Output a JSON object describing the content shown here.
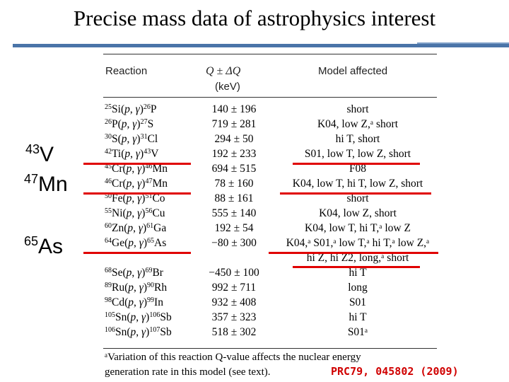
{
  "title": "Precise mass data of astrophysics interest",
  "side_labels": [
    {
      "mass": "43",
      "symbol": "V"
    },
    {
      "mass": "47",
      "symbol": "Mn"
    },
    {
      "mass": "65",
      "symbol": "As"
    }
  ],
  "table": {
    "headers": {
      "reaction": "Reaction",
      "q": "Q ± ΔQ",
      "q_unit": "(keV)",
      "model": "Model affected"
    },
    "rows": [
      {
        "t": "25",
        "tel": "Si",
        "p": "26",
        "pel": "P",
        "q": "140 ± 196",
        "m": "short"
      },
      {
        "t": "26",
        "tel": "P",
        "p": "27",
        "pel": "S",
        "q": "719 ± 281",
        "m": "K04, low Z,ᵃ short"
      },
      {
        "t": "30",
        "tel": "S",
        "p": "31",
        "pel": "Cl",
        "q": "294 ± 50",
        "m": "hi T, short"
      },
      {
        "t": "42",
        "tel": "Ti",
        "p": "43",
        "pel": "V",
        "q": "192 ± 233",
        "m": "S01, low T, low Z, short"
      },
      {
        "t": "45",
        "tel": "Cr",
        "p": "46",
        "pel": "Mn",
        "q": "694 ± 515",
        "m": "F08"
      },
      {
        "t": "46",
        "tel": "Cr",
        "p": "47",
        "pel": "Mn",
        "q": "78 ± 160",
        "m": "K04, low T, hi T, low Z, short"
      },
      {
        "t": "50",
        "tel": "Fe",
        "p": "51",
        "pel": "Co",
        "q": "88 ± 161",
        "m": "short"
      },
      {
        "t": "55",
        "tel": "Ni",
        "p": "56",
        "pel": "Cu",
        "q": "555 ± 140",
        "m": "K04, low Z, short"
      },
      {
        "t": "60",
        "tel": "Zn",
        "p": "61",
        "pel": "Ga",
        "q": "192 ± 54",
        "m": "K04, low T, hi T,ᵃ low Z"
      },
      {
        "t": "64",
        "tel": "Ge",
        "p": "65",
        "pel": "As",
        "q": "−80 ± 300",
        "m": "K04,ᵃ S01,ᵃ low T,ᵃ hi T,ᵃ low Z,ᵃ",
        "m2": "hi Z, hi Z2, long,ᵃ short"
      },
      {
        "t": "68",
        "tel": "Se",
        "p": "69",
        "pel": "Br",
        "q": "−450 ± 100",
        "m": "hi T"
      },
      {
        "t": "89",
        "tel": "Ru",
        "p": "90",
        "pel": "Rh",
        "q": "992 ± 711",
        "m": "long"
      },
      {
        "t": "98",
        "tel": "Cd",
        "p": "99",
        "pel": "In",
        "q": "932 ± 408",
        "m": "S01"
      },
      {
        "t": "105",
        "tel": "Sn",
        "p": "106",
        "pel": "Sb",
        "q": "357 ± 323",
        "m": "hi T"
      },
      {
        "t": "106",
        "tel": "Sn",
        "p": "107",
        "pel": "Sb",
        "q": "518 ± 302",
        "m": "S01ᵃ"
      }
    ],
    "footnote_line1": "ᵃVariation of this reaction Q-value affects the nuclear energy",
    "footnote_line2": "generation rate in this model (see text)."
  },
  "citation": "PRC79, 045802 (2009)",
  "colors": {
    "accent": "#4a74a8",
    "highlight": "#e00000"
  }
}
